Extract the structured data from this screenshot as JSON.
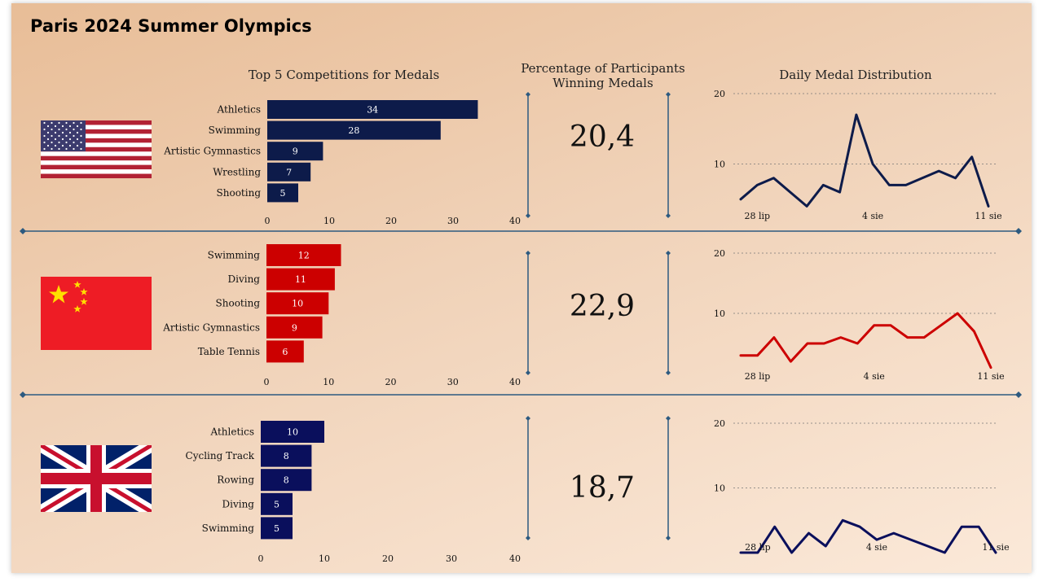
{
  "title": "Paris 2024 Summer Olympics",
  "headers": {
    "bars": "Top 5 Competitions for Medals",
    "pct_line1": "Percentage of Participants",
    "pct_line2": "Winning Medals",
    "daily": "Daily Medal Distribution"
  },
  "colors": {
    "usa": "#0d1b4a",
    "china": "#cc0000",
    "gb": "#0a0f5c",
    "divider": "#2d5a80"
  },
  "countries": [
    {
      "flag": "usa-flag",
      "pct": "20,4"
    },
    {
      "flag": "china-flag",
      "pct": "22,9"
    },
    {
      "flag": "uk-flag",
      "pct": "18,7"
    }
  ],
  "chart_data": [
    {
      "type": "bar",
      "orientation": "horizontal",
      "country_flag": "usa-flag",
      "categories": [
        "Athletics",
        "Swimming",
        "Artistic Gymnastics",
        "Wrestling",
        "Shooting"
      ],
      "values": [
        34,
        28,
        9,
        7,
        5
      ],
      "xlim": [
        0,
        40
      ],
      "xticks": [
        "0",
        "10",
        "20",
        "30",
        "40"
      ]
    },
    {
      "type": "bar",
      "orientation": "horizontal",
      "country_flag": "china-flag",
      "categories": [
        "Swimming",
        "Diving",
        "Shooting",
        "Artistic Gymnastics",
        "Table Tennis"
      ],
      "values": [
        12,
        11,
        10,
        9,
        6
      ],
      "xlim": [
        0,
        40
      ],
      "xticks": [
        "0",
        "10",
        "20",
        "30",
        "40"
      ]
    },
    {
      "type": "bar",
      "orientation": "horizontal",
      "country_flag": "uk-flag",
      "categories": [
        "Athletics",
        "Cycling Track",
        "Rowing",
        "Diving",
        "Swimming"
      ],
      "values": [
        10,
        8,
        8,
        5,
        5
      ],
      "xlim": [
        0,
        40
      ],
      "xticks": [
        "0",
        "10",
        "20",
        "30",
        "40"
      ]
    },
    {
      "type": "line",
      "country_flag": "usa-flag",
      "x": [
        "27 lip",
        "28 lip",
        "29 lip",
        "30 lip",
        "31 lip",
        "1 sie",
        "2 sie",
        "3 sie",
        "4 sie",
        "5 sie",
        "6 sie",
        "7 sie",
        "8 sie",
        "9 sie",
        "10 sie",
        "11 sie"
      ],
      "values": [
        5,
        7,
        8,
        6,
        4,
        7,
        6,
        17,
        10,
        7,
        7,
        8,
        9,
        8,
        11,
        4
      ],
      "xticks": [
        "28 lip",
        "4 sie",
        "11 sie"
      ],
      "ylim": [
        0,
        20
      ],
      "yticks": [
        "10",
        "20"
      ],
      "grid": true
    },
    {
      "type": "line",
      "country_flag": "china-flag",
      "x": [
        "27 lip",
        "28 lip",
        "29 lip",
        "30 lip",
        "31 lip",
        "1 sie",
        "2 sie",
        "3 sie",
        "4 sie",
        "5 sie",
        "6 sie",
        "7 sie",
        "8 sie",
        "9 sie",
        "10 sie",
        "11 sie"
      ],
      "values": [
        3,
        3,
        6,
        2,
        5,
        5,
        6,
        5,
        8,
        8,
        6,
        6,
        8,
        10,
        7,
        1
      ],
      "xticks": [
        "28 lip",
        "4 sie",
        "11 sie"
      ],
      "ylim": [
        0,
        20
      ],
      "yticks": [
        "10",
        "20"
      ],
      "grid": true
    },
    {
      "type": "line",
      "country_flag": "uk-flag",
      "x": [
        "27 lip",
        "28 lip",
        "29 lip",
        "30 lip",
        "31 lip",
        "1 sie",
        "2 sie",
        "3 sie",
        "4 sie",
        "5 sie",
        "6 sie",
        "7 sie",
        "8 sie",
        "9 sie",
        "10 sie",
        "11 sie"
      ],
      "values": [
        0,
        0,
        4,
        0,
        3,
        1,
        5,
        4,
        2,
        3,
        2,
        1,
        0,
        4,
        4,
        0
      ],
      "xticks": [
        "28 lip",
        "4 sie",
        "11 sie"
      ],
      "ylim": [
        0,
        20
      ],
      "yticks": [
        "10",
        "20"
      ],
      "grid": true
    }
  ]
}
